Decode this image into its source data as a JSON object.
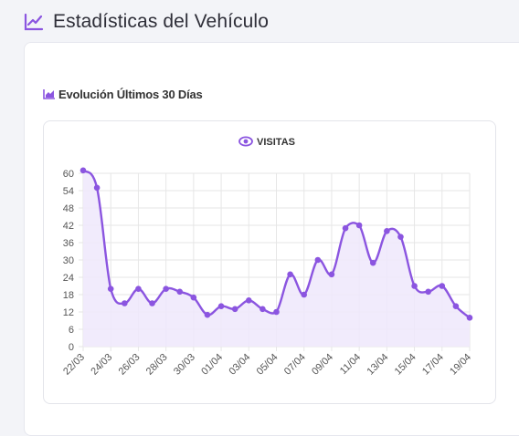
{
  "header": {
    "title": "Estadísticas del Vehículo",
    "icon": "line-chart-icon"
  },
  "section": {
    "title": "Evolución Últimos 30 Días",
    "icon": "area-chart-icon"
  },
  "colors": {
    "accent": "#8b55e0",
    "fill": "#efe8fc",
    "grid": "#e6e6e6"
  },
  "chart_data": {
    "type": "line",
    "legend": {
      "label": "VISITAS",
      "icon": "eye-icon",
      "placement": "top-center"
    },
    "x": [
      "22/03",
      "23/03",
      "24/03",
      "25/03",
      "26/03",
      "27/03",
      "28/03",
      "29/03",
      "30/03",
      "31/03",
      "01/04",
      "02/04",
      "03/04",
      "04/04",
      "05/04",
      "06/04",
      "07/04",
      "08/04",
      "09/04",
      "10/04",
      "11/04",
      "12/04",
      "13/04",
      "14/04",
      "15/04",
      "16/04",
      "17/04",
      "18/04",
      "19/04"
    ],
    "x_tick_labels": [
      "22/03",
      "24/03",
      "26/03",
      "28/03",
      "30/03",
      "01/04",
      "03/04",
      "05/04",
      "07/04",
      "09/04",
      "11/04",
      "13/04",
      "15/04",
      "17/04",
      "19/04"
    ],
    "series": [
      {
        "values": [
          61,
          55,
          20,
          15,
          20,
          15,
          20,
          19,
          17,
          11,
          14,
          13,
          16,
          13,
          12,
          25,
          18,
          30,
          25,
          41,
          42,
          29,
          40,
          38,
          21,
          19,
          21,
          14,
          10
        ]
      }
    ],
    "ylim": [
      0,
      60
    ],
    "y_ticks": [
      0,
      6,
      12,
      18,
      24,
      30,
      36,
      42,
      48,
      54,
      60
    ],
    "grid": true,
    "area_fill": true
  }
}
